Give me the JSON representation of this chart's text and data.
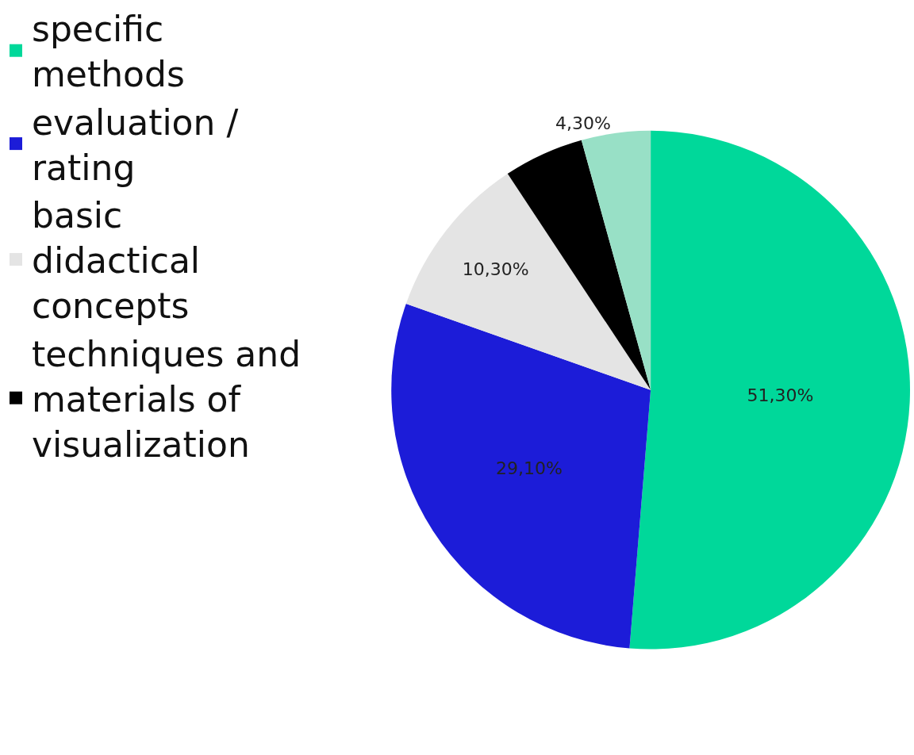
{
  "chart_data": {
    "type": "pie",
    "categories": [
      "specific methods",
      "evaluation / rating",
      "basic didactical concepts",
      "techniques and materials of visualization",
      null
    ],
    "values": [
      51.3,
      29.1,
      10.3,
      5.0,
      4.3
    ],
    "value_labels": [
      "51,30%",
      "29,10%",
      "10,30%",
      null,
      "4,30%"
    ],
    "colors": [
      "#00d89a",
      "#1c1cd8",
      "#e4e4e4",
      "#000000",
      "#98e0c6"
    ],
    "legend": "left"
  }
}
